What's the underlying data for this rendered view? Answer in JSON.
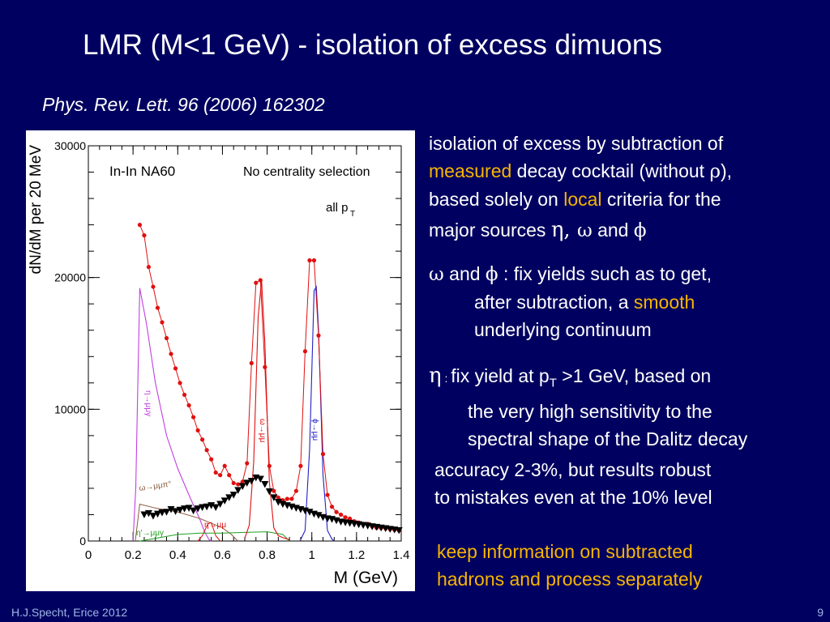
{
  "slide": {
    "title": "LMR (M<1 GeV) - isolation of excess dimuons",
    "reference": "Phys. Rev. Lett. 96 (2006) 162302",
    "footer_left": "H.J.Specht, Erice 2012",
    "page_number": "9"
  },
  "bullets": {
    "b1": {
      "l1": "isolation of excess by subtraction of",
      "l2_hl": "measured",
      "l2": " decay cocktail (without ",
      "l2_sym": "ρ",
      "l2_end": "),",
      "l3_a": "based solely on ",
      "l3_hl": "local",
      "l3_b": " criteria for the",
      "l4_a": "major sources ",
      "l4_eta": "η",
      "l4_comma": ", ",
      "l4_omega": "ω",
      "l4_and": " and ",
      "l4_phi": "ϕ"
    },
    "b2": {
      "omega": "ω",
      "and": " and ",
      "phi": "ϕ",
      "colon": " : ",
      "l1": " fix yields such as to get,",
      "l2_a": "after subtraction, a ",
      "l2_hl": "smooth",
      "l3": "underlying continuum"
    },
    "b3": {
      "eta": "η",
      "colon": " : ",
      "l1_a": " fix yield at p",
      "l1_sub": "T",
      "l1_b": " >1 GeV, based on",
      "l2": "the very high sensitivity to the",
      "l3": "spectral shape of the Dalitz decay"
    },
    "b4": {
      "l1": "accuracy  2-3%, but results robust",
      "l2": "to mistakes even at the 10% level"
    },
    "b5": {
      "l1": "keep information on subtracted",
      "l2": "hadrons and process separately"
    }
  },
  "chart_data": {
    "type": "line",
    "xlabel": "M (GeV)",
    "ylabel": "dN/dM per 20 MeV",
    "xlim": [
      0,
      1.4
    ],
    "ylim": [
      0,
      30000
    ],
    "x_ticks": [
      "0",
      "0.2",
      "0.4",
      "0.6",
      "0.8",
      "1",
      "1.2",
      "1.4"
    ],
    "x_tick_values": [
      0,
      0.2,
      0.4,
      0.6,
      0.8,
      1.0,
      1.2,
      1.4
    ],
    "y_ticks": [
      "0",
      "10000",
      "20000",
      "30000"
    ],
    "y_tick_values": [
      0,
      10000,
      20000,
      30000
    ],
    "grid": false,
    "annotations": {
      "system": "In-In  NA60",
      "selection": "No centrality selection",
      "pt_main": "all p",
      "pt_sub": "T",
      "eta_dalitz": "η→μμγ",
      "omega_dalitz": "ω→μμπ°",
      "eta_2body": "η→μμ",
      "eta_prime": "η'→μμγ",
      "omega_label": "ω→μμ",
      "phi_label": "ϕ→μμ"
    },
    "colors": {
      "data": "#e01010",
      "eta_dalitz": "#c040e0",
      "omega_dalitz": "#8b5a3c",
      "omega": "#e01010",
      "phi": "#2020c8",
      "eta_prime": "#20a020",
      "excess": "#000000"
    },
    "series": [
      {
        "name": "data",
        "x": [
          0.23,
          0.25,
          0.27,
          0.29,
          0.31,
          0.33,
          0.35,
          0.37,
          0.39,
          0.41,
          0.43,
          0.45,
          0.47,
          0.49,
          0.51,
          0.53,
          0.55,
          0.57,
          0.59,
          0.61,
          0.63,
          0.65,
          0.67,
          0.69,
          0.71,
          0.73,
          0.75,
          0.77,
          0.79,
          0.81,
          0.83,
          0.85,
          0.87,
          0.89,
          0.91,
          0.93,
          0.95,
          0.97,
          0.99,
          1.01,
          1.03,
          1.05,
          1.07,
          1.09,
          1.11,
          1.13,
          1.15,
          1.17,
          1.19,
          1.21,
          1.23,
          1.25,
          1.27,
          1.29,
          1.31,
          1.33,
          1.35,
          1.37,
          1.39
        ],
        "y": [
          24000,
          23200,
          20800,
          19300,
          17700,
          16600,
          15400,
          14200,
          13100,
          12000,
          11100,
          10300,
          9400,
          8400,
          7700,
          6900,
          6200,
          5200,
          5000,
          5700,
          5000,
          4400,
          4300,
          4500,
          5900,
          13500,
          19600,
          19800,
          13200,
          5700,
          3800,
          3300,
          3100,
          3200,
          3200,
          3800,
          5700,
          14400,
          21300,
          21300,
          15600,
          6600,
          3500,
          2600,
          2200,
          2000,
          1800,
          1700,
          1500,
          1400,
          1300,
          1300,
          1100,
          1000,
          1000,
          950,
          900,
          850,
          800
        ]
      },
      {
        "name": "eta_dalitz",
        "x": [
          0.2,
          0.212,
          0.23,
          0.26,
          0.3,
          0.35,
          0.4,
          0.45,
          0.5,
          0.52,
          0.54,
          0.55
        ],
        "y": [
          0,
          4000,
          19200,
          16500,
          12000,
          8000,
          5500,
          3500,
          1600,
          700,
          100,
          0
        ]
      },
      {
        "name": "omega_dalitz",
        "x": [
          0.21,
          0.23,
          0.3,
          0.4,
          0.5,
          0.6,
          0.64,
          0.66,
          0.67
        ],
        "y": [
          0,
          2800,
          2500,
          2200,
          1700,
          1000,
          500,
          150,
          0
        ]
      },
      {
        "name": "eta_2body",
        "x": [
          0.49,
          0.51,
          0.535,
          0.55,
          0.57,
          0.59
        ],
        "y": [
          0,
          400,
          1300,
          1400,
          400,
          0
        ]
      },
      {
        "name": "eta_prime",
        "x": [
          0.23,
          0.3,
          0.4,
          0.5,
          0.6,
          0.7,
          0.8,
          0.87,
          0.9
        ],
        "y": [
          0,
          200,
          500,
          600,
          600,
          650,
          700,
          500,
          0
        ]
      },
      {
        "name": "omega",
        "x": [
          0.7,
          0.72,
          0.74,
          0.76,
          0.775,
          0.79,
          0.81,
          0.83,
          0.85,
          0.88,
          0.9
        ],
        "y": [
          200,
          1200,
          6000,
          17000,
          19800,
          15000,
          4500,
          1000,
          400,
          200,
          100
        ]
      },
      {
        "name": "phi",
        "x": [
          0.95,
          0.97,
          0.99,
          1.01,
          1.02,
          1.03,
          1.05,
          1.07,
          1.09,
          1.1
        ],
        "y": [
          100,
          800,
          7000,
          19000,
          19300,
          16000,
          5000,
          800,
          150,
          0
        ]
      },
      {
        "name": "excess",
        "x": [
          0.25,
          0.27,
          0.29,
          0.31,
          0.33,
          0.35,
          0.37,
          0.39,
          0.41,
          0.43,
          0.45,
          0.47,
          0.49,
          0.51,
          0.53,
          0.55,
          0.57,
          0.59,
          0.61,
          0.63,
          0.65,
          0.67,
          0.69,
          0.71,
          0.73,
          0.75,
          0.77,
          0.79,
          0.81,
          0.83,
          0.85,
          0.87,
          0.89,
          0.91,
          0.93,
          0.95,
          0.97,
          0.99,
          1.01,
          1.03,
          1.05,
          1.07,
          1.09,
          1.11,
          1.13,
          1.15,
          1.17,
          1.19,
          1.21,
          1.23,
          1.25,
          1.27,
          1.29,
          1.31,
          1.33,
          1.35,
          1.37,
          1.39
        ],
        "y": [
          2000,
          2100,
          1900,
          2050,
          2150,
          2200,
          2400,
          2250,
          2350,
          2450,
          2500,
          2300,
          2450,
          2550,
          2600,
          2700,
          2550,
          2800,
          3050,
          3300,
          3500,
          3850,
          4150,
          4400,
          4550,
          4800,
          4700,
          4300,
          3750,
          3300,
          2950,
          2800,
          2700,
          2600,
          2500,
          2400,
          2300,
          2200,
          2050,
          1950,
          1800,
          1700,
          1650,
          1550,
          1450,
          1400,
          1350,
          1300,
          1250,
          1200,
          1150,
          1100,
          1050,
          1000,
          950,
          900,
          850,
          800
        ]
      }
    ]
  }
}
